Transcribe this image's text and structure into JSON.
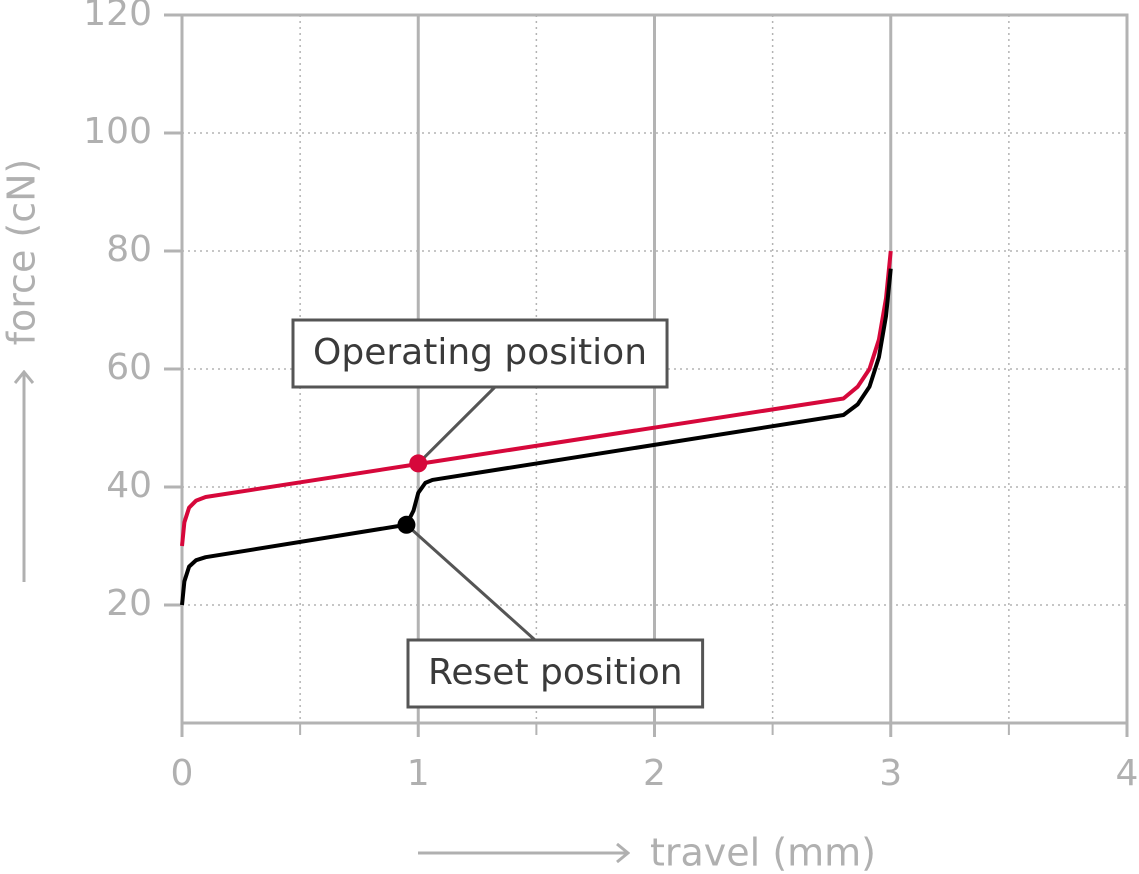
{
  "chart_data": {
    "type": "line",
    "xlabel": "travel (mm)",
    "ylabel": "force (cN)",
    "xlim": [
      0,
      4
    ],
    "ylim": [
      0,
      120
    ],
    "xticks": [
      0,
      1,
      2,
      3,
      4
    ],
    "xminorticks": [
      0.5,
      1.5,
      2.5,
      3.5
    ],
    "yticks": [
      20,
      40,
      60,
      80,
      100,
      120
    ],
    "grid": true,
    "series": [
      {
        "color": "#d6083b",
        "x": [
          0,
          0.01,
          0.03,
          0.06,
          0.1,
          1,
          2.8,
          2.86,
          2.91,
          2.95,
          2.98,
          3
        ],
        "values": [
          30,
          34,
          36.5,
          37.7,
          38.3,
          43.9,
          55,
          57,
          60,
          65,
          72,
          80
        ]
      },
      {
        "color": "#000000",
        "x": [
          0,
          0.01,
          0.03,
          0.06,
          0.1,
          0.95,
          0.98,
          1.0,
          1.03,
          1.06,
          2.8,
          2.86,
          2.91,
          2.95,
          2.98,
          3
        ],
        "values": [
          20,
          24,
          26.5,
          27.6,
          28.1,
          33.6,
          36,
          39,
          40.7,
          41.2,
          52.2,
          54,
          57,
          62,
          69,
          77
        ]
      }
    ],
    "annotations": [
      {
        "text": "Operating position",
        "x": 1,
        "y": 44,
        "color": "#d6083b"
      },
      {
        "text": "Reset position",
        "x": 0.95,
        "y": 33.6,
        "color": "#000000"
      }
    ]
  }
}
